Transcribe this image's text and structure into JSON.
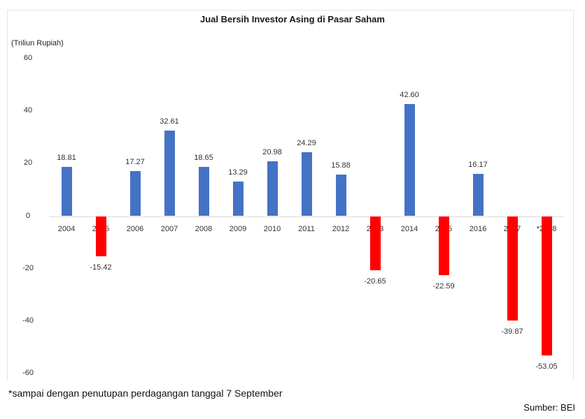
{
  "title": "Jual Bersih Investor Asing di Pasar Saham",
  "unit_label": "(Triliun Rupiah)",
  "footnote": "*sampai dengan penutupan perdagangan tanggal 7 September",
  "source": "Sumber: BEI",
  "colors": {
    "positive": "#4472c4",
    "negative": "#ff0000"
  },
  "y_ticks": [
    "60",
    "40",
    "20",
    "0",
    "-20",
    "-40",
    "-60"
  ],
  "bars": [
    {
      "year": "2004",
      "value": 18.81,
      "label": "18.81"
    },
    {
      "year": "2005",
      "value": -15.42,
      "label": "-15.42"
    },
    {
      "year": "2006",
      "value": 17.27,
      "label": "17.27"
    },
    {
      "year": "2007",
      "value": 32.61,
      "label": "32.61"
    },
    {
      "year": "2008",
      "value": 18.65,
      "label": "18.65"
    },
    {
      "year": "2009",
      "value": 13.29,
      "label": "13.29"
    },
    {
      "year": "2010",
      "value": 20.98,
      "label": "20.98"
    },
    {
      "year": "2011",
      "value": 24.29,
      "label": "24.29"
    },
    {
      "year": "2012",
      "value": 15.88,
      "label": "15.88"
    },
    {
      "year": "2013",
      "value": -20.65,
      "label": "-20.65"
    },
    {
      "year": "2014",
      "value": 42.6,
      "label": "42.60"
    },
    {
      "year": "2015",
      "value": -22.59,
      "label": "-22.59"
    },
    {
      "year": "2016",
      "value": 16.17,
      "label": "16.17"
    },
    {
      "year": "2017",
      "value": -39.87,
      "label": "-39.87"
    },
    {
      "year": "*2018",
      "value": -53.05,
      "label": "-53.05"
    }
  ],
  "chart_data": {
    "type": "bar",
    "title": "Jual Bersih Investor Asing di Pasar Saham",
    "xlabel": "",
    "ylabel": "(Triliun Rupiah)",
    "categories": [
      "2004",
      "2005",
      "2006",
      "2007",
      "2008",
      "2009",
      "2010",
      "2011",
      "2012",
      "2013",
      "2014",
      "2015",
      "2016",
      "2017",
      "*2018"
    ],
    "values": [
      18.81,
      -15.42,
      17.27,
      32.61,
      18.65,
      13.29,
      20.98,
      24.29,
      15.88,
      -20.65,
      42.6,
      -22.59,
      16.17,
      -39.87,
      -53.05
    ],
    "ylim": [
      -60,
      60
    ],
    "y_ticks": [
      60,
      40,
      20,
      0,
      -20,
      -40,
      -60
    ],
    "grid": false,
    "legend": "none",
    "data_labels": true,
    "bar_colors": {
      "positive": "#4472c4",
      "negative": "#ff0000"
    },
    "annotations": [
      "*sampai dengan penutupan perdagangan tanggal 7 September",
      "Sumber: BEI"
    ]
  }
}
